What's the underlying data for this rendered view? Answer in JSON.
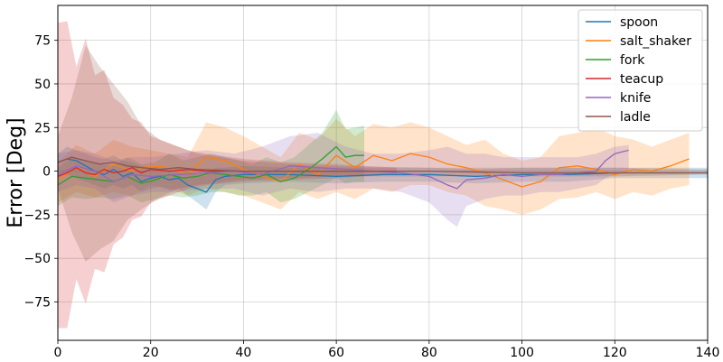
{
  "chart_data": {
    "type": "line",
    "title": "",
    "xlabel": "",
    "ylabel": "Error [Deg]",
    "xlim": [
      0,
      140
    ],
    "ylim": [
      -97,
      95
    ],
    "xticks": [
      0,
      20,
      40,
      60,
      80,
      100,
      120,
      140
    ],
    "yticks": [
      -75,
      -50,
      -25,
      0,
      25,
      50,
      75
    ],
    "grid": true,
    "legend_position": "top-right",
    "series": [
      {
        "name": "spoon",
        "color": "#1f77b4",
        "x": [
          0,
          2,
          4,
          6,
          8,
          10,
          12,
          14,
          16,
          18,
          20,
          22,
          24,
          26,
          28,
          30,
          32,
          34,
          36,
          40,
          50,
          60,
          70,
          80,
          90,
          100,
          110,
          120,
          130,
          140
        ],
        "y": [
          5,
          7,
          6,
          3,
          0,
          -2,
          1,
          -3,
          -1,
          -6,
          -4,
          -3,
          -5,
          -4,
          -8,
          -10,
          -12,
          -5,
          -3,
          -2,
          -2,
          -3,
          -2,
          -2,
          -3,
          -2,
          -2,
          -1,
          -1,
          -1
        ],
        "upper": [
          10,
          14,
          12,
          10,
          8,
          7,
          9,
          6,
          5,
          3,
          2,
          3,
          2,
          2,
          0,
          -2,
          -3,
          2,
          2,
          3,
          2,
          2,
          2,
          2,
          1,
          2,
          2,
          2,
          2,
          2
        ],
        "lower": [
          -2,
          -2,
          -4,
          -6,
          -8,
          -10,
          -8,
          -10,
          -8,
          -12,
          -10,
          -9,
          -11,
          -10,
          -14,
          -18,
          -22,
          -12,
          -8,
          -7,
          -6,
          -7,
          -6,
          -6,
          -7,
          -6,
          -6,
          -4,
          -4,
          -4
        ]
      },
      {
        "name": "salt_shaker",
        "color": "#ff7f0e",
        "x": [
          0,
          4,
          8,
          12,
          16,
          20,
          24,
          28,
          32,
          36,
          40,
          44,
          48,
          52,
          56,
          60,
          64,
          68,
          72,
          76,
          80,
          84,
          88,
          92,
          96,
          100,
          104,
          108,
          112,
          116,
          120,
          124,
          128,
          132,
          136
        ],
        "y": [
          -5,
          2,
          -3,
          4,
          0,
          3,
          2,
          -2,
          8,
          6,
          1,
          -3,
          -6,
          4,
          -2,
          9,
          2,
          9,
          6,
          10,
          8,
          4,
          2,
          -1,
          -5,
          -9,
          -6,
          2,
          3,
          1,
          -2,
          1,
          0,
          3,
          7
        ],
        "upper": [
          5,
          15,
          10,
          18,
          14,
          12,
          10,
          8,
          28,
          25,
          20,
          14,
          8,
          22,
          18,
          30,
          20,
          27,
          25,
          28,
          25,
          20,
          15,
          18,
          10,
          6,
          8,
          20,
          22,
          25,
          20,
          18,
          14,
          18,
          22
        ],
        "lower": [
          -18,
          -12,
          -15,
          -12,
          -14,
          -8,
          -10,
          -14,
          -10,
          -12,
          -14,
          -18,
          -22,
          -12,
          -16,
          -12,
          -16,
          -10,
          -12,
          -8,
          -8,
          -12,
          -14,
          -20,
          -22,
          -25,
          -22,
          -16,
          -15,
          -12,
          -16,
          -12,
          -14,
          -10,
          -8
        ]
      },
      {
        "name": "fork",
        "color": "#2ca02c",
        "x": [
          0,
          3,
          6,
          9,
          12,
          15,
          18,
          21,
          24,
          27,
          30,
          33,
          36,
          39,
          42,
          45,
          48,
          51,
          54,
          57,
          60,
          62,
          64,
          66
        ],
        "y": [
          -8,
          -3,
          -4,
          -5,
          -6,
          -3,
          -7,
          -5,
          -2,
          -4,
          -3,
          -1,
          -2,
          -3,
          -4,
          -2,
          -6,
          -4,
          1,
          7,
          14,
          8,
          9,
          9
        ],
        "upper": [
          2,
          8,
          6,
          4,
          3,
          8,
          4,
          5,
          10,
          6,
          8,
          10,
          8,
          6,
          4,
          8,
          5,
          8,
          15,
          22,
          35,
          24,
          25,
          26
        ],
        "lower": [
          -20,
          -15,
          -16,
          -15,
          -16,
          -14,
          -18,
          -16,
          -14,
          -15,
          -14,
          -12,
          -12,
          -14,
          -14,
          -12,
          -18,
          -16,
          -12,
          -8,
          -4,
          -7,
          -6,
          -6
        ]
      },
      {
        "name": "teacup",
        "color": "#d62728",
        "x": [
          0,
          2,
          4,
          6,
          8,
          10,
          12,
          14,
          16,
          18,
          20,
          24,
          28,
          32,
          40,
          50,
          60,
          66,
          73
        ],
        "y": [
          -3,
          -1,
          2,
          -1,
          -2,
          1,
          -1,
          0,
          2,
          -1,
          1,
          0,
          1,
          0,
          0,
          0,
          0,
          0,
          0
        ],
        "upper": [
          85,
          86,
          60,
          76,
          55,
          58,
          42,
          38,
          30,
          28,
          20,
          16,
          12,
          10,
          7,
          5,
          4,
          3,
          2
        ],
        "lower": [
          -90,
          -90,
          -62,
          -76,
          -56,
          -58,
          -42,
          -38,
          -28,
          -26,
          -18,
          -14,
          -10,
          -8,
          -6,
          -5,
          -4,
          -3,
          -2
        ]
      },
      {
        "name": "knife",
        "color": "#9467bd",
        "x": [
          0,
          4,
          8,
          12,
          16,
          20,
          26,
          32,
          38,
          44,
          50,
          56,
          62,
          68,
          74,
          80,
          84,
          86,
          88,
          92,
          96,
          100,
          104,
          108,
          112,
          116,
          118,
          120,
          123
        ],
        "y": [
          -2,
          3,
          0,
          -6,
          -2,
          -3,
          -2,
          -1,
          0,
          -2,
          3,
          2,
          1,
          0,
          -1,
          -3,
          -8,
          -10,
          -5,
          -4,
          -2,
          -3,
          -2,
          -2,
          -1,
          0,
          6,
          10,
          12
        ],
        "upper": [
          10,
          12,
          10,
          6,
          8,
          8,
          10,
          12,
          10,
          14,
          20,
          22,
          14,
          10,
          10,
          12,
          14,
          12,
          10,
          10,
          8,
          8,
          8,
          8,
          8,
          10,
          12,
          14,
          15
        ],
        "lower": [
          -12,
          -8,
          -10,
          -18,
          -14,
          -12,
          -12,
          -10,
          -10,
          -14,
          -10,
          -12,
          -10,
          -10,
          -12,
          -18,
          -28,
          -32,
          -20,
          -16,
          -14,
          -14,
          -12,
          -12,
          -10,
          -8,
          -4,
          -2,
          0
        ]
      },
      {
        "name": "ladle",
        "color": "#8c564b",
        "x": [
          0,
          3,
          6,
          9,
          12,
          15,
          18,
          22,
          26,
          30,
          40,
          50,
          60,
          80,
          100,
          120,
          140
        ],
        "y": [
          5,
          8,
          6,
          4,
          5,
          3,
          2,
          1,
          2,
          1,
          0,
          0,
          0,
          0,
          -1,
          -1,
          -1
        ],
        "upper": [
          20,
          42,
          72,
          60,
          50,
          40,
          26,
          18,
          14,
          10,
          6,
          4,
          3,
          2,
          2,
          2,
          1
        ],
        "lower": [
          -10,
          -35,
          -52,
          -45,
          -40,
          -28,
          -22,
          -15,
          -10,
          -8,
          -5,
          -4,
          -3,
          -3,
          -3,
          -3,
          -2
        ]
      }
    ]
  }
}
